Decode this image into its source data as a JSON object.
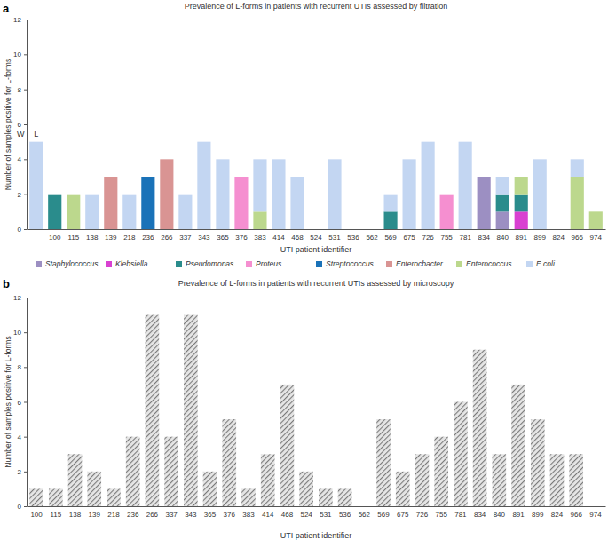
{
  "chart_data": [
    {
      "type": "bar",
      "stacked": true,
      "panel_label": "a",
      "title": "Prevalence of L-forms in patients with recurrent UTIs assessed by filtration",
      "x_label": "UTI patient identifier",
      "y_label": "Number of samples positive for L-forms",
      "annotations": [
        "W",
        "L"
      ],
      "legend": "bottom",
      "categories": [
        null,
        "100",
        "115",
        "138",
        "139",
        "218",
        "236",
        "266",
        "337",
        "343",
        "365",
        "376",
        "383",
        "414",
        "468",
        "524",
        "531",
        "536",
        "562",
        "569",
        "675",
        "726",
        "755",
        "781",
        "834",
        "840",
        "891",
        "899",
        "824",
        "966",
        "974"
      ],
      "series": [
        {
          "name": "Staphylococcus",
          "color": "#9c8fc2",
          "values": [
            0,
            0,
            0,
            0,
            0,
            0,
            0,
            0,
            0,
            0,
            0,
            0,
            0,
            0,
            0,
            0,
            0,
            0,
            0,
            0,
            0,
            0,
            0,
            0,
            3,
            1,
            0,
            0,
            0,
            0,
            0
          ]
        },
        {
          "name": "Klebsiella",
          "color": "#d941d1",
          "values": [
            0,
            0,
            0,
            0,
            0,
            0,
            0,
            0,
            0,
            0,
            0,
            0,
            0,
            0,
            0,
            0,
            0,
            0,
            0,
            0,
            0,
            0,
            0,
            0,
            0,
            0,
            1,
            0,
            0,
            0,
            0
          ]
        },
        {
          "name": "Pseudomonas",
          "color": "#2a8c8c",
          "values": [
            0,
            2,
            0,
            0,
            0,
            0,
            0,
            0,
            0,
            0,
            0,
            0,
            0,
            0,
            0,
            0,
            0,
            0,
            0,
            1,
            0,
            0,
            0,
            0,
            0,
            1,
            1,
            0,
            0,
            0,
            0
          ]
        },
        {
          "name": "Proteus",
          "color": "#f58fd0",
          "values": [
            0,
            0,
            0,
            0,
            0,
            0,
            0,
            0,
            0,
            0,
            0,
            3,
            0,
            0,
            0,
            0,
            0,
            0,
            0,
            0,
            0,
            0,
            2,
            0,
            0,
            0,
            0,
            0,
            0,
            0,
            0
          ]
        },
        {
          "name": "Streptococcus",
          "color": "#1a72b8",
          "values": [
            0,
            0,
            0,
            0,
            0,
            0,
            3,
            0,
            0,
            0,
            0,
            0,
            0,
            0,
            0,
            0,
            0,
            0,
            0,
            0,
            0,
            0,
            0,
            0,
            0,
            0,
            0,
            0,
            0,
            0,
            0
          ]
        },
        {
          "name": "Enterocbacter",
          "color": "#d99493",
          "values": [
            0,
            0,
            0,
            0,
            3,
            0,
            0,
            4,
            0,
            0,
            0,
            0,
            0,
            0,
            0,
            0,
            0,
            0,
            0,
            0,
            0,
            0,
            0,
            0,
            0,
            0,
            0,
            0,
            0,
            0,
            0
          ]
        },
        {
          "name": "Enterococcus",
          "color": "#bcd88d",
          "values": [
            0,
            0,
            2,
            0,
            0,
            0,
            0,
            0,
            0,
            0,
            0,
            0,
            1,
            0,
            0,
            0,
            0,
            0,
            0,
            0,
            0,
            0,
            0,
            0,
            0,
            0,
            1,
            0,
            0,
            3,
            1
          ]
        },
        {
          "name": "E.coli",
          "color": "#c3d6f2",
          "values": [
            5,
            0,
            0,
            2,
            0,
            2,
            0,
            0,
            2,
            5,
            4,
            0,
            3,
            4,
            3,
            0,
            4,
            0,
            0,
            1,
            4,
            5,
            0,
            5,
            0,
            1,
            0,
            4,
            0,
            1,
            0
          ]
        }
      ],
      "ylim": [
        0,
        12
      ],
      "yticks": [
        0,
        2,
        4,
        6,
        8,
        10,
        12
      ]
    },
    {
      "type": "bar",
      "panel_label": "b",
      "title": "Prevalence of L-forms in patients with recurrent UTIs assessed by microscopy",
      "x_label": "UTI patient identifier",
      "y_label": "Number of samples positive for L-forms",
      "color": "#7a7a7a",
      "categories": [
        "100",
        "115",
        "138",
        "139",
        "218",
        "236",
        "266",
        "337",
        "343",
        "365",
        "376",
        "383",
        "414",
        "468",
        "524",
        "531",
        "536",
        "562",
        "569",
        "675",
        "726",
        "755",
        "781",
        "834",
        "840",
        "891",
        "899",
        "824",
        "966",
        "974"
      ],
      "values": [
        1,
        1,
        3,
        2,
        1,
        4,
        11,
        4,
        11,
        2,
        5,
        1,
        3,
        7,
        2,
        1,
        1,
        0,
        5,
        2,
        3,
        4,
        6,
        9,
        3,
        7,
        5,
        3,
        3,
        0
      ],
      "ylim": [
        0,
        12
      ],
      "yticks": [
        0,
        2,
        4,
        6,
        8,
        10,
        12
      ]
    }
  ]
}
